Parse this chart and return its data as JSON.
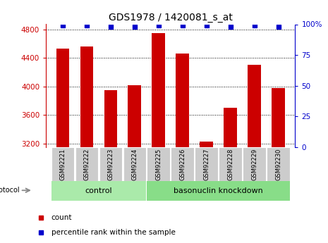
{
  "title": "GDS1978 / 1420081_s_at",
  "samples": [
    "GSM92221",
    "GSM92222",
    "GSM92223",
    "GSM92224",
    "GSM92225",
    "GSM92226",
    "GSM92227",
    "GSM92228",
    "GSM92229",
    "GSM92230"
  ],
  "counts": [
    4530,
    4555,
    3950,
    4020,
    4750,
    4465,
    3230,
    3700,
    4305,
    3980
  ],
  "percentiles": [
    99,
    99,
    98,
    98,
    99,
    99,
    99,
    98,
    99,
    98
  ],
  "groups": [
    "control",
    "control",
    "control",
    "control",
    "basonuclin knockdown",
    "basonuclin knockdown",
    "basonuclin knockdown",
    "basonuclin knockdown",
    "basonuclin knockdown",
    "basonuclin knockdown"
  ],
  "control_color": "#aaeaaa",
  "knockdown_color": "#88dd88",
  "bar_color": "#CC0000",
  "dot_color": "#0000CC",
  "sample_box_color": "#cccccc",
  "ylim_left": [
    3150,
    4870
  ],
  "ylim_right": [
    0,
    100
  ],
  "yticks_left": [
    3200,
    3600,
    4000,
    4400,
    4800
  ],
  "yticks_right": [
    0,
    25,
    50,
    75,
    100
  ],
  "ytick_right_labels": [
    "0",
    "25",
    "50",
    "75",
    "100%"
  ],
  "bg_color": "#ffffff",
  "title_fontsize": 10,
  "tick_fontsize": 7.5,
  "group_label_fontsize": 8,
  "sample_fontsize": 6,
  "legend_count_label": "count",
  "legend_pct_label": "percentile rank within the sample",
  "protocol_label": "protocol"
}
